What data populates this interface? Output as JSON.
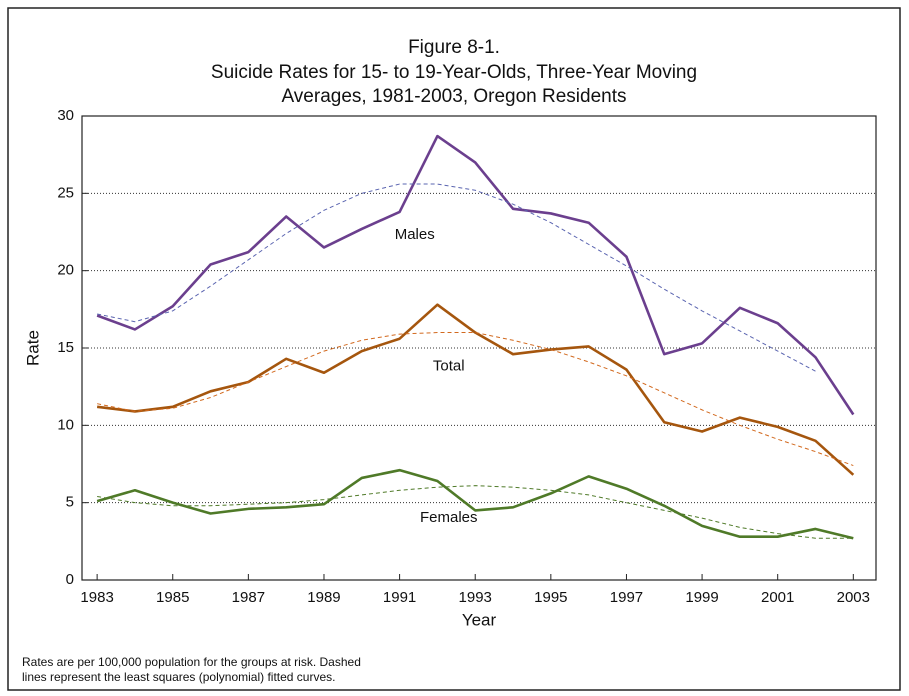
{
  "chart_data": {
    "type": "line",
    "title": "Figure 8-1.",
    "subtitle": [
      "Suicide Rates for 15- to 19-Year-Olds, Three-Year Moving",
      "Averages, 1981-2003, Oregon Residents"
    ],
    "x_label": "Year",
    "y_label": "Rate",
    "x": [
      1983,
      1984,
      1985,
      1986,
      1987,
      1988,
      1989,
      1990,
      1991,
      1992,
      1993,
      1994,
      1995,
      1996,
      1997,
      1998,
      1999,
      2000,
      2001,
      2002,
      2003
    ],
    "series": [
      {
        "name": "Males",
        "color": "#6b3f8e",
        "values": [
          17.1,
          16.2,
          17.7,
          20.4,
          21.2,
          23.5,
          21.5,
          22.7,
          23.8,
          28.7,
          27.0,
          24.0,
          23.7,
          23.1,
          20.9,
          14.6,
          15.3,
          17.6,
          16.6,
          14.4,
          10.7
        ]
      },
      {
        "name": "Total",
        "color": "#a5560e",
        "values": [
          11.2,
          10.9,
          11.2,
          12.2,
          12.8,
          14.3,
          13.4,
          14.8,
          15.6,
          17.8,
          16.0,
          14.6,
          14.9,
          15.1,
          13.6,
          10.2,
          9.6,
          10.5,
          9.9,
          9.0,
          6.8
        ]
      },
      {
        "name": "Females",
        "color": "#4f7a28",
        "values": [
          5.1,
          5.8,
          5.0,
          4.3,
          4.6,
          4.7,
          4.9,
          6.6,
          7.1,
          6.4,
          4.5,
          4.7,
          5.6,
          6.7,
          5.9,
          4.8,
          3.5,
          2.8,
          2.8,
          3.3,
          2.7
        ]
      },
      {
        "color": "#5a64b0",
        "dashed": true,
        "values": [
          17.2,
          16.7,
          17.4,
          19.0,
          20.7,
          22.4,
          23.9,
          25.0,
          25.6,
          25.6,
          25.2,
          24.3,
          23.1,
          21.7,
          20.3,
          18.8,
          17.4,
          16.1,
          14.8,
          13.5,
          null
        ]
      },
      {
        "color": "#d2691e",
        "dashed": true,
        "values": [
          11.4,
          10.9,
          11.1,
          11.8,
          12.8,
          13.8,
          14.8,
          15.5,
          15.9,
          16.0,
          16.0,
          15.5,
          14.9,
          14.1,
          13.2,
          12.1,
          11.0,
          10.0,
          9.1,
          8.3,
          7.4
        ]
      },
      {
        "color": "#4f7a28",
        "dashed": true,
        "values": [
          5.4,
          5.0,
          4.8,
          4.8,
          4.9,
          5.0,
          5.2,
          5.5,
          5.8,
          6.0,
          6.1,
          6.0,
          5.8,
          5.5,
          5.0,
          4.5,
          4.0,
          3.4,
          3.0,
          2.7,
          2.7
        ]
      }
    ],
    "xlim": [
      1982.6,
      2003.6
    ],
    "ylim": [
      0,
      30
    ],
    "xticks": [
      1983,
      1985,
      1987,
      1989,
      1991,
      1993,
      1995,
      1997,
      1999,
      2001,
      2003
    ],
    "yticks": [
      0,
      5,
      10,
      15,
      20,
      25,
      30
    ],
    "grid": true,
    "note": [
      "Rates are per 100,000 population for the groups at risk.  Dashed",
      "lines represent the least squares (polynomial) fitted curves."
    ]
  }
}
